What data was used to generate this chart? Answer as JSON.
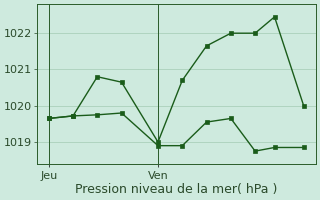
{
  "background_color": "#ceeade",
  "grid_color": "#b0d4c0",
  "line_color": "#1a5c1a",
  "marker_color": "#1a5c1a",
  "xlabel": "Pression niveau de la mer( hPa )",
  "ylim": [
    1018.4,
    1022.8
  ],
  "yticks": [
    1019,
    1020,
    1021,
    1022
  ],
  "xtick_labels": [
    "Jeu",
    "Ven"
  ],
  "xtick_positions": [
    0.5,
    5.0
  ],
  "vline_positions": [
    0.5,
    5.0
  ],
  "line1_x": [
    0.5,
    1.5,
    2.5,
    3.5,
    5.0,
    6.0,
    7.0,
    8.0,
    9.0,
    9.8,
    11.0
  ],
  "line1_y": [
    1019.65,
    1019.72,
    1020.8,
    1020.65,
    1019.0,
    1020.7,
    1021.65,
    1022.0,
    1022.0,
    1022.45,
    1020.0
  ],
  "line2_x": [
    0.5,
    1.5,
    2.5,
    3.5,
    5.0,
    6.0,
    7.0,
    8.0,
    9.0,
    9.8,
    11.0
  ],
  "line2_y": [
    1019.65,
    1019.72,
    1019.75,
    1019.8,
    1018.9,
    1018.9,
    1019.55,
    1019.65,
    1018.75,
    1018.85,
    1018.85
  ],
  "font_size_label": 9,
  "font_size_tick": 8,
  "xlim": [
    0.0,
    11.5
  ]
}
